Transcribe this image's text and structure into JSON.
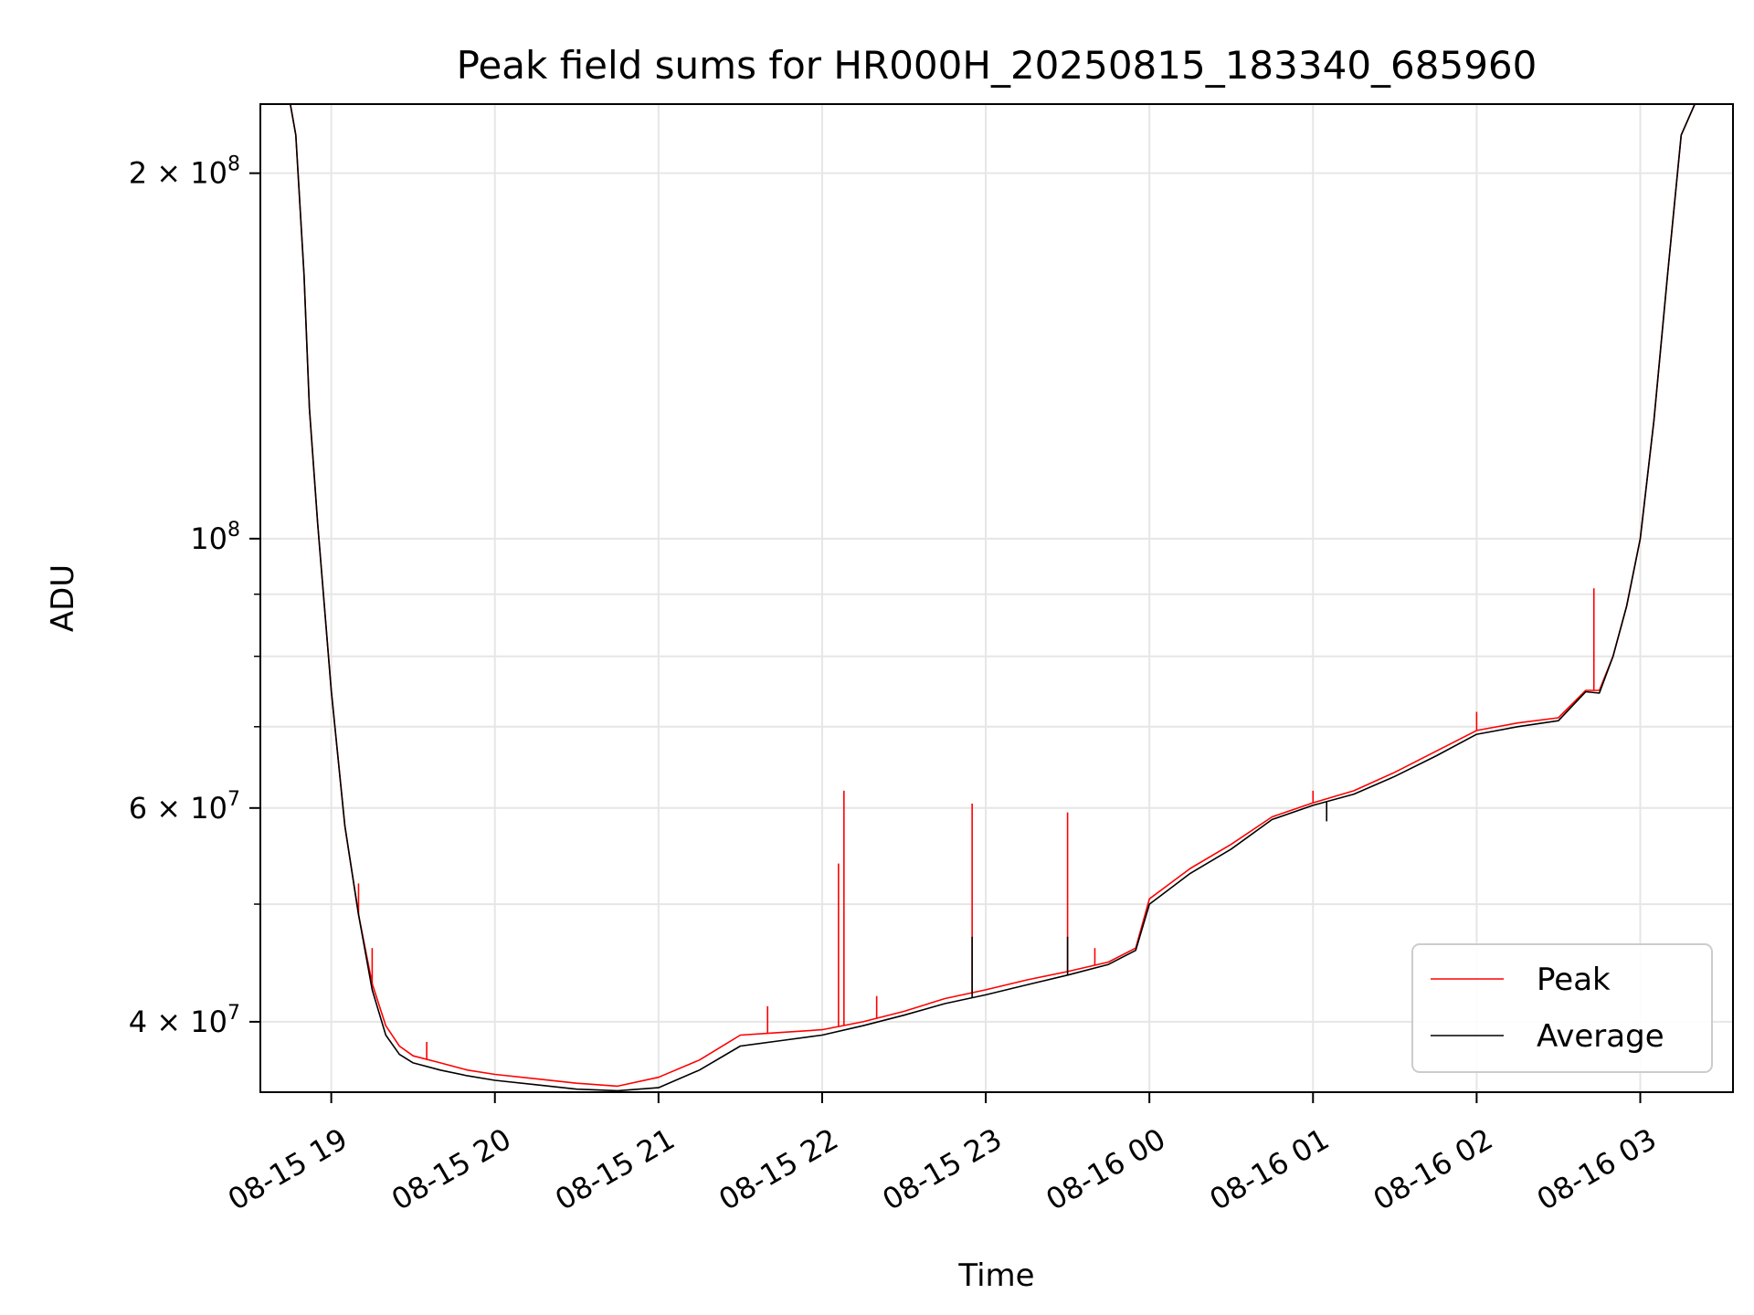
{
  "chart_data": {
    "type": "line",
    "title": "Peak field sums for HR000H_20250815_183340_685960",
    "xlabel": "Time",
    "ylabel": "ADU",
    "y_scale": "log",
    "ylim": [
      35000000,
      228000000
    ],
    "xlim": [
      "2025-08-15 18:34",
      "2025-08-16 03:34"
    ],
    "grid": true,
    "legend_position": "lower right",
    "x_ticks": [
      {
        "t": "2025-08-15 19:00",
        "label": "08-15 19"
      },
      {
        "t": "2025-08-15 20:00",
        "label": "08-15 20"
      },
      {
        "t": "2025-08-15 21:00",
        "label": "08-15 21"
      },
      {
        "t": "2025-08-15 22:00",
        "label": "08-15 22"
      },
      {
        "t": "2025-08-15 23:00",
        "label": "08-15 23"
      },
      {
        "t": "2025-08-16 00:00",
        "label": "08-16 00"
      },
      {
        "t": "2025-08-16 01:00",
        "label": "08-16 01"
      },
      {
        "t": "2025-08-16 02:00",
        "label": "08-16 02"
      },
      {
        "t": "2025-08-16 03:00",
        "label": "08-16 03"
      }
    ],
    "y_ticks_major": [
      {
        "value": 40000000,
        "mantissa": "4 × 10",
        "exp": "7"
      },
      {
        "value": 60000000,
        "mantissa": "6 × 10",
        "exp": "7"
      },
      {
        "value": 100000000,
        "mantissa": "10",
        "exp": "8"
      },
      {
        "value": 200000000,
        "mantissa": "2 × 10",
        "exp": "8"
      }
    ],
    "y_ticks_minor": [
      50000000,
      70000000,
      80000000,
      90000000
    ],
    "series": [
      {
        "name": "Peak",
        "color": "#ff0000",
        "points": [
          [
            "2025-08-15 18:34",
            228000000
          ],
          [
            "2025-08-15 18:45",
            228000000
          ],
          [
            "2025-08-15 18:47",
            215000000
          ],
          [
            "2025-08-15 18:50",
            165000000
          ],
          [
            "2025-08-15 18:52",
            128000000
          ],
          [
            "2025-08-15 18:55",
            103000000
          ],
          [
            "2025-08-15 19:00",
            75000000
          ],
          [
            "2025-08-15 19:05",
            58000000
          ],
          [
            "2025-08-15 19:10",
            49000000
          ],
          [
            "2025-08-15 19:15",
            43000000
          ],
          [
            "2025-08-15 19:20",
            39700000
          ],
          [
            "2025-08-15 19:25",
            38200000
          ],
          [
            "2025-08-15 19:30",
            37500000
          ],
          [
            "2025-08-15 19:40",
            37000000
          ],
          [
            "2025-08-15 19:50",
            36500000
          ],
          [
            "2025-08-15 20:00",
            36200000
          ],
          [
            "2025-08-15 20:15",
            35900000
          ],
          [
            "2025-08-15 20:30",
            35600000
          ],
          [
            "2025-08-15 20:45",
            35400000
          ],
          [
            "2025-08-15 21:00",
            36000000
          ],
          [
            "2025-08-15 21:15",
            37200000
          ],
          [
            "2025-08-15 21:30",
            39000000
          ],
          [
            "2025-08-15 21:45",
            39200000
          ],
          [
            "2025-08-15 22:00",
            39400000
          ],
          [
            "2025-08-15 22:15",
            40000000
          ],
          [
            "2025-08-15 22:30",
            40800000
          ],
          [
            "2025-08-15 22:45",
            41800000
          ],
          [
            "2025-08-15 23:00",
            42500000
          ],
          [
            "2025-08-15 23:15",
            43300000
          ],
          [
            "2025-08-15 23:30",
            44000000
          ],
          [
            "2025-08-15 23:45",
            44800000
          ],
          [
            "2025-08-15 23:55",
            46000000
          ],
          [
            "2025-08-16 00:00",
            50500000
          ],
          [
            "2025-08-16 00:15",
            53500000
          ],
          [
            "2025-08-16 00:30",
            56000000
          ],
          [
            "2025-08-16 00:45",
            59000000
          ],
          [
            "2025-08-16 01:00",
            60600000
          ],
          [
            "2025-08-16 01:15",
            62000000
          ],
          [
            "2025-08-16 01:30",
            64200000
          ],
          [
            "2025-08-16 01:45",
            66800000
          ],
          [
            "2025-08-16 02:00",
            69500000
          ],
          [
            "2025-08-16 02:15",
            70500000
          ],
          [
            "2025-08-16 02:30",
            71200000
          ],
          [
            "2025-08-16 02:40",
            75000000
          ],
          [
            "2025-08-16 02:45",
            75000000
          ],
          [
            "2025-08-16 02:50",
            80000000
          ],
          [
            "2025-08-16 02:55",
            88000000
          ],
          [
            "2025-08-16 03:00",
            100000000
          ],
          [
            "2025-08-16 03:05",
            125000000
          ],
          [
            "2025-08-16 03:10",
            165000000
          ],
          [
            "2025-08-16 03:15",
            215000000
          ],
          [
            "2025-08-16 03:20",
            228000000
          ],
          [
            "2025-08-16 03:34",
            228000000
          ]
        ],
        "spikes": [
          [
            "2025-08-15 19:10",
            52000000
          ],
          [
            "2025-08-15 19:15",
            46000000
          ],
          [
            "2025-08-15 19:35",
            38500000
          ],
          [
            "2025-08-15 21:40",
            41200000
          ],
          [
            "2025-08-15 22:06",
            54000000
          ],
          [
            "2025-08-15 22:08",
            62000000
          ],
          [
            "2025-08-15 22:20",
            42000000
          ],
          [
            "2025-08-15 22:55",
            60500000
          ],
          [
            "2025-08-15 23:30",
            59500000
          ],
          [
            "2025-08-15 23:40",
            46000000
          ],
          [
            "2025-08-16 01:00",
            62000000
          ],
          [
            "2025-08-16 02:00",
            72000000
          ],
          [
            "2025-08-16 02:43",
            91000000
          ]
        ]
      },
      {
        "name": "Average",
        "color": "#000000",
        "points": [
          [
            "2025-08-15 18:34",
            228000000
          ],
          [
            "2025-08-15 18:45",
            228000000
          ],
          [
            "2025-08-15 18:47",
            215000000
          ],
          [
            "2025-08-15 18:50",
            165000000
          ],
          [
            "2025-08-15 18:52",
            128000000
          ],
          [
            "2025-08-15 18:55",
            103000000
          ],
          [
            "2025-08-15 19:00",
            75000000
          ],
          [
            "2025-08-15 19:05",
            58000000
          ],
          [
            "2025-08-15 19:10",
            49000000
          ],
          [
            "2025-08-15 19:15",
            42500000
          ],
          [
            "2025-08-15 19:20",
            39000000
          ],
          [
            "2025-08-15 19:25",
            37600000
          ],
          [
            "2025-08-15 19:30",
            37000000
          ],
          [
            "2025-08-15 19:40",
            36500000
          ],
          [
            "2025-08-15 19:50",
            36100000
          ],
          [
            "2025-08-15 20:00",
            35800000
          ],
          [
            "2025-08-15 20:15",
            35500000
          ],
          [
            "2025-08-15 20:30",
            35200000
          ],
          [
            "2025-08-15 20:45",
            35100000
          ],
          [
            "2025-08-15 21:00",
            35300000
          ],
          [
            "2025-08-15 21:15",
            36500000
          ],
          [
            "2025-08-15 21:30",
            38200000
          ],
          [
            "2025-08-15 21:45",
            38600000
          ],
          [
            "2025-08-15 22:00",
            39000000
          ],
          [
            "2025-08-15 22:15",
            39700000
          ],
          [
            "2025-08-15 22:30",
            40500000
          ],
          [
            "2025-08-15 22:45",
            41400000
          ],
          [
            "2025-08-15 23:00",
            42100000
          ],
          [
            "2025-08-15 23:15",
            42900000
          ],
          [
            "2025-08-15 23:30",
            43700000
          ],
          [
            "2025-08-15 23:45",
            44600000
          ],
          [
            "2025-08-15 23:55",
            45800000
          ],
          [
            "2025-08-16 00:00",
            50000000
          ],
          [
            "2025-08-16 00:15",
            53000000
          ],
          [
            "2025-08-16 00:30",
            55500000
          ],
          [
            "2025-08-16 00:45",
            58700000
          ],
          [
            "2025-08-16 01:00",
            60300000
          ],
          [
            "2025-08-16 01:15",
            61600000
          ],
          [
            "2025-08-16 01:30",
            63700000
          ],
          [
            "2025-08-16 01:45",
            66200000
          ],
          [
            "2025-08-16 02:00",
            69000000
          ],
          [
            "2025-08-16 02:15",
            70000000
          ],
          [
            "2025-08-16 02:30",
            70800000
          ],
          [
            "2025-08-16 02:40",
            74800000
          ],
          [
            "2025-08-16 02:45",
            74600000
          ],
          [
            "2025-08-16 02:50",
            80000000
          ],
          [
            "2025-08-16 02:55",
            88000000
          ],
          [
            "2025-08-16 03:00",
            100000000
          ],
          [
            "2025-08-16 03:05",
            125000000
          ],
          [
            "2025-08-16 03:10",
            165000000
          ],
          [
            "2025-08-16 03:15",
            215000000
          ],
          [
            "2025-08-16 03:20",
            228000000
          ],
          [
            "2025-08-16 03:34",
            228000000
          ]
        ],
        "spikes": [
          [
            "2025-08-15 22:55",
            47000000
          ],
          [
            "2025-08-15 23:30",
            47000000
          ],
          [
            "2025-08-16 01:05",
            58500000
          ]
        ]
      }
    ]
  }
}
